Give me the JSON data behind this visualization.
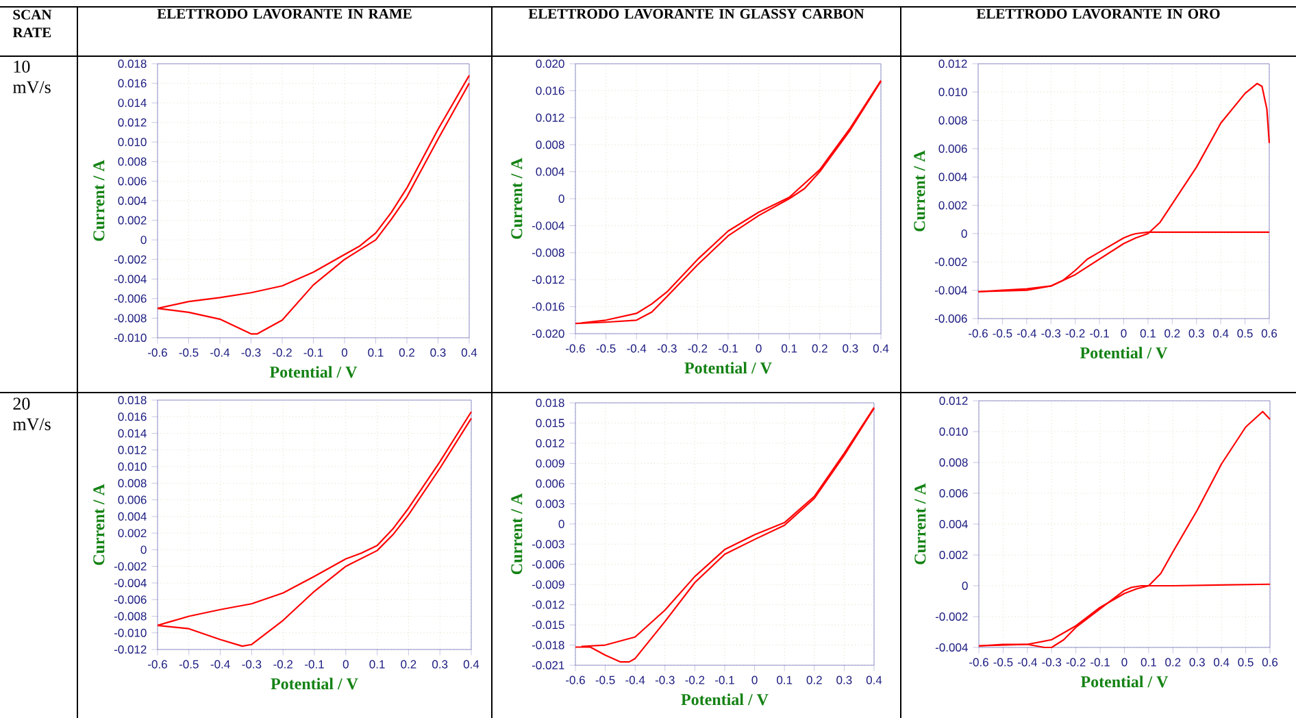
{
  "chart_data": [
    {
      "type": "line",
      "title": "ELETTRODO LAVORANTE IN RAME",
      "xlabel": "Potential / V",
      "ylabel": "Current / A",
      "annotations": [
        "SCAN RATE",
        "10 mV/s"
      ],
      "grid": true,
      "series": [
        {
          "color": "#ff0000",
          "x": [
            -0.6,
            -0.5,
            -0.4,
            -0.3,
            -0.28,
            -0.2,
            -0.1,
            0,
            0.1,
            0.15,
            0.2,
            0.3,
            0.4
          ],
          "values": [
            -0.007,
            -0.0074,
            -0.0081,
            -0.0096,
            -0.0096,
            -0.0082,
            -0.0046,
            -0.002,
            0,
            0.0021,
            0.0044,
            0.0103,
            0.016
          ]
        },
        {
          "color": "#ff0000",
          "x": [
            0.4,
            0.3,
            0.2,
            0.15,
            0.1,
            0.05,
            0,
            -0.1,
            -0.2,
            -0.3,
            -0.4,
            -0.5,
            -0.6
          ],
          "values": [
            0.0168,
            0.0113,
            0.0053,
            0.0028,
            0.0007,
            -0.0006,
            -0.0015,
            -0.0033,
            -0.0047,
            -0.0054,
            -0.0059,
            -0.0063,
            -0.007
          ]
        }
      ],
      "xlim": [
        -0.6,
        0.4
      ],
      "ylim": [
        -0.01,
        0.018
      ],
      "xticks": [
        -0.6,
        -0.5,
        -0.4,
        -0.3,
        -0.2,
        -0.1,
        0,
        0.1,
        0.2,
        0.3,
        0.4
      ],
      "yticks": [
        {
          "value": -0.01,
          "label": "-0.010"
        },
        {
          "value": -0.008,
          "label": "-0.008"
        },
        {
          "value": -0.006,
          "label": "-0.006"
        },
        {
          "value": -0.004,
          "label": "-0.004"
        },
        {
          "value": -0.002,
          "label": "-0.002"
        },
        0,
        {
          "value": 0.002,
          "label": "0.002"
        },
        {
          "value": 0.004,
          "label": "0.004"
        },
        {
          "value": 0.006,
          "label": "0.006"
        },
        {
          "value": 0.008,
          "label": "0.008"
        },
        {
          "value": 0.01,
          "label": "0.010"
        },
        {
          "value": 0.012,
          "label": "0.012"
        },
        {
          "value": 0.014,
          "label": "0.014"
        },
        {
          "value": 0.016,
          "label": "0.016"
        },
        {
          "value": 0.018,
          "label": "0.018"
        }
      ]
    },
    {
      "type": "line",
      "title": "ELETTRODO LAVORANTE IN GLASSY CARBON",
      "xlabel": "Potential / V",
      "ylabel": "Current / A",
      "grid": true,
      "series": [
        {
          "color": "#ff0000",
          "x": [
            -0.6,
            -0.5,
            -0.4,
            -0.35,
            -0.3,
            -0.2,
            -0.1,
            0,
            0.1,
            0.15,
            0.2,
            0.3,
            0.4
          ],
          "values": [
            -0.0185,
            -0.0183,
            -0.018,
            -0.0168,
            -0.0145,
            -0.0098,
            -0.0055,
            -0.0025,
            0,
            0.0015,
            0.004,
            0.0102,
            0.0174
          ]
        },
        {
          "color": "#ff0000",
          "x": [
            0.4,
            0.3,
            0.2,
            0.1,
            0,
            -0.1,
            -0.2,
            -0.3,
            -0.35,
            -0.4,
            -0.5,
            -0.58
          ],
          "values": [
            0.0175,
            0.0105,
            0.0043,
            0.0002,
            -0.002,
            -0.0048,
            -0.009,
            -0.0138,
            -0.0156,
            -0.017,
            -0.018,
            -0.0184
          ]
        }
      ],
      "xlim": [
        -0.6,
        0.4
      ],
      "ylim": [
        -0.02,
        0.02
      ],
      "xticks": [
        -0.6,
        -0.5,
        -0.4,
        -0.3,
        -0.2,
        -0.1,
        0,
        0.1,
        0.2,
        0.3,
        0.4
      ],
      "yticks": [
        {
          "value": -0.02,
          "label": "-0.020"
        },
        {
          "value": -0.016,
          "label": "-0.016"
        },
        {
          "value": -0.012,
          "label": "-0.012"
        },
        {
          "value": -0.008,
          "label": "-0.008"
        },
        {
          "value": -0.004,
          "label": "-0.004"
        },
        0,
        {
          "value": 0.004,
          "label": "0.004"
        },
        {
          "value": 0.008,
          "label": "0.008"
        },
        {
          "value": 0.012,
          "label": "0.012"
        },
        {
          "value": 0.016,
          "label": "0.016"
        },
        {
          "value": 0.02,
          "label": "0.020"
        }
      ]
    },
    {
      "type": "line",
      "title": "ELETTRODO LAVORANTE IN ORO",
      "xlabel": "Potential / V",
      "ylabel": "Current / A",
      "grid": true,
      "series": [
        {
          "color": "#ff0000",
          "x": [
            -0.6,
            -0.4,
            -0.3,
            -0.2,
            -0.1,
            0,
            0.05,
            0.1,
            0.15,
            0.2,
            0.3,
            0.4,
            0.5,
            0.55,
            0.57,
            0.59,
            0.6
          ],
          "values": [
            -0.0041,
            -0.004,
            -0.0037,
            -0.0029,
            -0.0018,
            -0.0007,
            -0.0003,
            0,
            0.0008,
            0.0021,
            0.0047,
            0.0078,
            0.0099,
            0.0106,
            0.0104,
            0.0088,
            0.0064
          ]
        },
        {
          "color": "#ff0000",
          "x": [
            0.6,
            0.4,
            0.2,
            0.1,
            0.05,
            0.03,
            0,
            -0.1,
            -0.15,
            -0.2,
            -0.25,
            -0.3,
            -0.4,
            -0.5,
            -0.6
          ],
          "values": [
            0.0001,
            0.0001,
            0.0001,
            0.0001,
            0,
            -0.0001,
            -0.0003,
            -0.0013,
            -0.0018,
            -0.0026,
            -0.0033,
            -0.0037,
            -0.0039,
            -0.004,
            -0.0041
          ]
        }
      ],
      "xlim": [
        -0.6,
        0.6
      ],
      "ylim": [
        -0.006,
        0.012
      ],
      "xticks": [
        -0.6,
        -0.5,
        -0.4,
        -0.3,
        -0.2,
        -0.1,
        0,
        0.1,
        0.2,
        0.3,
        0.4,
        0.5,
        0.6
      ],
      "yticks": [
        {
          "value": -0.006,
          "label": "-0.006"
        },
        {
          "value": -0.004,
          "label": "-0.004"
        },
        {
          "value": -0.002,
          "label": "-0.002"
        },
        0,
        {
          "value": 0.002,
          "label": "0.002"
        },
        {
          "value": 0.004,
          "label": "0.004"
        },
        {
          "value": 0.006,
          "label": "0.006"
        },
        {
          "value": 0.008,
          "label": "0.008"
        },
        {
          "value": 0.01,
          "label": "0.010"
        },
        {
          "value": 0.012,
          "label": "0.012"
        }
      ]
    },
    {
      "type": "line",
      "xlabel": "Potential / V",
      "ylabel": "Current / A",
      "annotations": [
        "20 mV/s"
      ],
      "grid": true,
      "series": [
        {
          "color": "#ff0000",
          "x": [
            -0.6,
            -0.5,
            -0.4,
            -0.33,
            -0.3,
            -0.2,
            -0.1,
            0,
            0.1,
            0.15,
            0.2,
            0.3,
            0.4
          ],
          "values": [
            -0.0091,
            -0.0095,
            -0.0108,
            -0.0116,
            -0.0114,
            -0.0085,
            -0.005,
            -0.002,
            -0.0001,
            0.0018,
            0.0042,
            0.0098,
            0.0158
          ]
        },
        {
          "color": "#ff0000",
          "x": [
            0.4,
            0.3,
            0.2,
            0.15,
            0.1,
            0.05,
            0,
            -0.1,
            -0.2,
            -0.3,
            -0.4,
            -0.5,
            -0.6
          ],
          "values": [
            0.0166,
            0.0106,
            0.005,
            0.0025,
            0.0005,
            -0.0004,
            -0.0011,
            -0.0032,
            -0.0052,
            -0.0065,
            -0.0072,
            -0.008,
            -0.0091
          ]
        }
      ],
      "xlim": [
        -0.6,
        0.4
      ],
      "ylim": [
        -0.012,
        0.018
      ],
      "xticks": [
        -0.6,
        -0.5,
        -0.4,
        -0.3,
        -0.2,
        -0.1,
        0,
        0.1,
        0.2,
        0.3,
        0.4
      ],
      "yticks": [
        {
          "value": -0.012,
          "label": "-0.012"
        },
        {
          "value": -0.01,
          "label": "-0.010"
        },
        {
          "value": -0.008,
          "label": "-0.008"
        },
        {
          "value": -0.006,
          "label": "-0.006"
        },
        {
          "value": -0.004,
          "label": "-0.004"
        },
        {
          "value": -0.002,
          "label": "-0.002"
        },
        0,
        {
          "value": 0.002,
          "label": "0.002"
        },
        {
          "value": 0.004,
          "label": "0.004"
        },
        {
          "value": 0.006,
          "label": "0.006"
        },
        {
          "value": 0.008,
          "label": "0.008"
        },
        {
          "value": 0.01,
          "label": "0.010"
        },
        {
          "value": 0.012,
          "label": "0.012"
        },
        {
          "value": 0.014,
          "label": "0.014"
        },
        {
          "value": 0.016,
          "label": "0.016"
        },
        {
          "value": 0.018,
          "label": "0.018"
        }
      ]
    },
    {
      "type": "line",
      "xlabel": "Potential / V",
      "ylabel": "Current / A",
      "grid": true,
      "series": [
        {
          "color": "#ff0000",
          "x": [
            -0.6,
            -0.55,
            -0.5,
            -0.45,
            -0.42,
            -0.4,
            -0.3,
            -0.2,
            -0.1,
            0,
            0.1,
            0.2,
            0.3,
            0.4
          ],
          "values": [
            -0.0183,
            -0.0183,
            -0.0195,
            -0.0205,
            -0.0205,
            -0.02,
            -0.0145,
            -0.0087,
            -0.0045,
            -0.0023,
            -0.0002,
            0.0038,
            0.0102,
            0.0172
          ]
        },
        {
          "color": "#ff0000",
          "x": [
            0.4,
            0.3,
            0.2,
            0.1,
            0,
            -0.1,
            -0.2,
            -0.3,
            -0.4,
            -0.5,
            -0.58
          ],
          "values": [
            0.0173,
            0.0105,
            0.0041,
            0.0002,
            -0.0016,
            -0.0038,
            -0.0078,
            -0.0128,
            -0.0168,
            -0.018,
            -0.0182
          ]
        }
      ],
      "xlim": [
        -0.6,
        0.4
      ],
      "ylim": [
        -0.021,
        0.018
      ],
      "xticks": [
        -0.6,
        -0.5,
        -0.4,
        -0.3,
        -0.2,
        -0.1,
        0,
        0.1,
        0.2,
        0.3,
        0.4
      ],
      "yticks": [
        {
          "value": -0.021,
          "label": "-0.021"
        },
        {
          "value": -0.018,
          "label": "-0.018"
        },
        {
          "value": -0.015,
          "label": "-0.015"
        },
        {
          "value": -0.012,
          "label": "-0.012"
        },
        {
          "value": -0.009,
          "label": "-0.009"
        },
        {
          "value": -0.006,
          "label": "-0.006"
        },
        {
          "value": -0.003,
          "label": "-0.003"
        },
        0,
        {
          "value": 0.003,
          "label": "0.003"
        },
        {
          "value": 0.006,
          "label": "0.006"
        },
        {
          "value": 0.009,
          "label": "0.009"
        },
        {
          "value": 0.012,
          "label": "0.012"
        },
        {
          "value": 0.015,
          "label": "0.015"
        },
        {
          "value": 0.018,
          "label": "0.018"
        }
      ]
    },
    {
      "type": "line",
      "xlabel": "Potential / V",
      "ylabel": "Current / A",
      "grid": true,
      "series": [
        {
          "color": "#ff0000",
          "x": [
            -0.6,
            -0.4,
            -0.3,
            -0.2,
            -0.1,
            0,
            0.05,
            0.1,
            0.15,
            0.2,
            0.3,
            0.4,
            0.5,
            0.57,
            0.6
          ],
          "values": [
            -0.0039,
            -0.0038,
            -0.0035,
            -0.0026,
            -0.0014,
            -0.0005,
            -0.0002,
            0,
            0.0008,
            0.0022,
            0.0049,
            0.0079,
            0.0103,
            0.0113,
            0.0108
          ]
        },
        {
          "color": "#ff0000",
          "x": [
            0.6,
            0.2,
            0.07,
            0.03,
            0,
            -0.1,
            -0.2,
            -0.25,
            -0.3,
            -0.33,
            -0.4,
            -0.5,
            -0.6
          ],
          "values": [
            0.0001,
            0,
            0,
            -0.0001,
            -0.0003,
            -0.0015,
            -0.0027,
            -0.0035,
            -0.004,
            -0.004,
            -0.0038,
            -0.0038,
            -0.0039
          ]
        }
      ],
      "xlim": [
        -0.6,
        0.6
      ],
      "ylim": [
        -0.004,
        0.012
      ],
      "xticks": [
        -0.6,
        -0.5,
        -0.4,
        -0.3,
        -0.2,
        -0.1,
        0,
        0.1,
        0.2,
        0.3,
        0.4,
        0.5,
        0.6
      ],
      "yticks": [
        {
          "value": -0.004,
          "label": "-0.004"
        },
        {
          "value": -0.002,
          "label": "-0.002"
        },
        0,
        {
          "value": 0.002,
          "label": "0.002"
        },
        {
          "value": 0.004,
          "label": "0.004"
        },
        {
          "value": 0.006,
          "label": "0.006"
        },
        {
          "value": 0.008,
          "label": "0.008"
        },
        {
          "value": 0.01,
          "label": "0.010"
        },
        {
          "value": 0.012,
          "label": "0.012"
        }
      ]
    }
  ]
}
